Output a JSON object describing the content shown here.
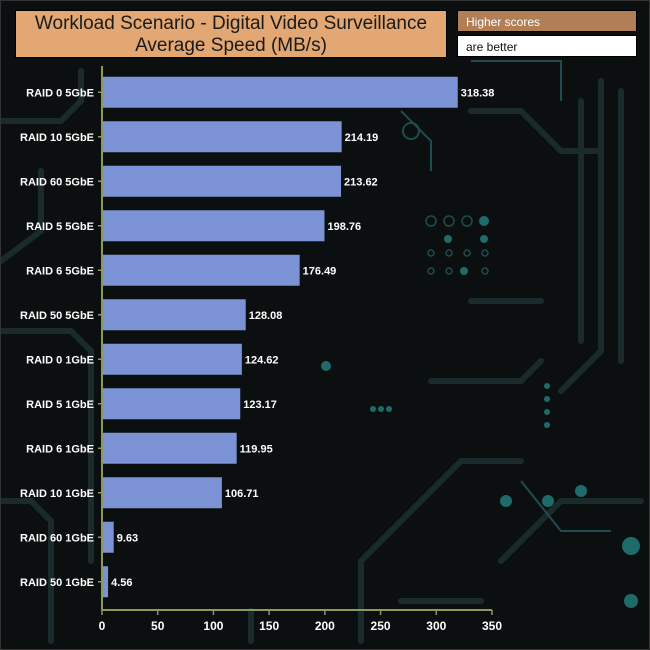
{
  "title": {
    "line1": "Workload Scenario - Digital Video Surveillance",
    "line2": "Average Speed (MB/s)"
  },
  "legend": {
    "higher": "Higher scores",
    "better": "are better"
  },
  "colors": {
    "bar": "#7b93d4",
    "title_bg": "#e2a772",
    "legend_bg": "#b07f55",
    "axis": "#8a9a5b",
    "background": "#0b0f0f"
  },
  "chart_data": {
    "type": "bar",
    "orientation": "horizontal",
    "title": "Workload Scenario - Digital Video Surveillance Average Speed (MB/s)",
    "categories": [
      "RAID 0 5GbE",
      "RAID 10 5GbE",
      "RAID 60 5GbE",
      "RAID 5 5GbE",
      "RAID 6 5GbE",
      "RAID 50 5GbE",
      "RAID 0 1GbE",
      "RAID 5 1GbE",
      "RAID 6 1GbE",
      "RAID 10 1GbE",
      "RAID 60 1GbE",
      "RAID 50 1GbE"
    ],
    "values": [
      318.38,
      214.19,
      213.62,
      198.76,
      176.49,
      128.08,
      124.62,
      123.17,
      119.95,
      106.71,
      9.63,
      4.56
    ],
    "value_labels": [
      "318.38",
      "214.19",
      "213.62",
      "198.76",
      "176.49",
      "128.08",
      "124.62",
      "123.17",
      "119.95",
      "106.71",
      "9.63",
      "4.56"
    ],
    "xlim": [
      0,
      350
    ],
    "xticks": [
      "0",
      "50",
      "100",
      "150",
      "200",
      "250",
      "300",
      "350"
    ],
    "tick_values": [
      0,
      50,
      100,
      150,
      200,
      250,
      300,
      350
    ],
    "xlabel": "",
    "ylabel": "",
    "grid": false
  }
}
